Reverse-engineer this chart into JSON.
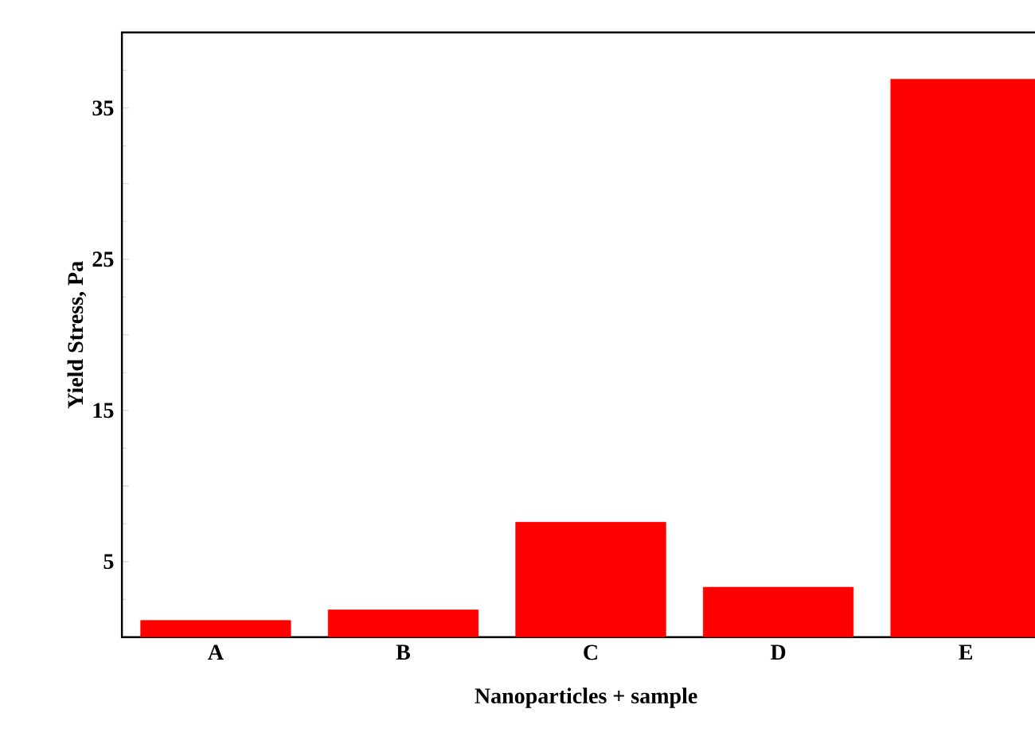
{
  "chart_data": {
    "type": "bar",
    "xlabel": "Nanoparticles + sample",
    "ylabel": "Yield Stress, Pa",
    "categories": [
      "A",
      "B",
      "C",
      "D",
      "E"
    ],
    "values": [
      1.1,
      1.8,
      7.6,
      3.3,
      36.9
    ],
    "color": "#ff0000",
    "ylim": [
      0,
      40
    ],
    "yticks": [
      {
        "value": 0,
        "label": null
      },
      5,
      {
        "value": 10,
        "label": null
      },
      15,
      {
        "value": 20,
        "label": null
      },
      25,
      {
        "value": 30,
        "label": null
      },
      35,
      {
        "value": 40,
        "label": null
      }
    ]
  }
}
